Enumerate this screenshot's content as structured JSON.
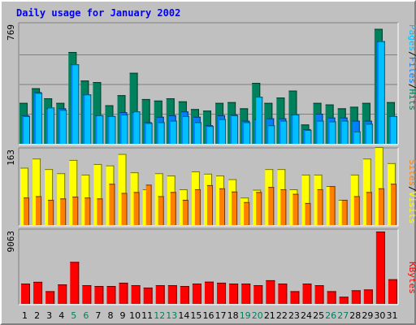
{
  "title": "Daily usage for January 2002",
  "colors": {
    "hits": "#00805c",
    "files": "#0080ff",
    "pages": "#00c0ff",
    "visits": "#ffff00",
    "sites": "#ff8000",
    "kbytes": "#ff0000",
    "title": "#0000ff",
    "weekend_day": "#00805c",
    "weekday": "#000000",
    "panel_bg": "#c0c0c0"
  },
  "chart_data": [
    {
      "type": "bar",
      "panel": "top",
      "axis_max_label": "769",
      "ylim": [
        0,
        769
      ],
      "categories": [
        "1",
        "2",
        "3",
        "4",
        "5",
        "6",
        "7",
        "8",
        "9",
        "10",
        "11",
        "12",
        "13",
        "14",
        "15",
        "16",
        "17",
        "18",
        "19",
        "20",
        "21",
        "22",
        "23",
        "24",
        "25",
        "26",
        "27",
        "28",
        "29",
        "30",
        "31"
      ],
      "legend": [
        {
          "text": "Pages",
          "color": "#00c0ff"
        },
        {
          "text": "/",
          "color": "#000000"
        },
        {
          "text": "Files",
          "color": "#0080ff"
        },
        {
          "text": "/",
          "color": "#000000"
        },
        {
          "text": "Hits",
          "color": "#00805c"
        }
      ],
      "series": [
        {
          "name": "Hits",
          "values": [
            265,
            360,
            295,
            265,
            595,
            410,
            400,
            250,
            315,
            460,
            290,
            280,
            295,
            275,
            225,
            215,
            265,
            270,
            230,
            395,
            265,
            300,
            345,
            125,
            265,
            255,
            230,
            240,
            265,
            745,
            270
          ]
        },
        {
          "name": "Files",
          "values": [
            185,
            335,
            230,
            230,
            515,
            320,
            185,
            180,
            205,
            205,
            140,
            175,
            185,
            210,
            175,
            120,
            185,
            190,
            150,
            160,
            165,
            165,
            190,
            95,
            195,
            170,
            170,
            150,
            150,
            665,
            180
          ]
        },
        {
          "name": "Pages",
          "values": [
            180,
            330,
            235,
            220,
            515,
            320,
            185,
            180,
            190,
            210,
            135,
            140,
            150,
            180,
            140,
            115,
            160,
            185,
            140,
            305,
            120,
            150,
            190,
            90,
            150,
            145,
            150,
            80,
            130,
            665,
            180
          ]
        }
      ]
    },
    {
      "type": "bar",
      "panel": "middle",
      "axis_max_label": "163",
      "ylim": [
        0,
        163
      ],
      "categories": [
        "1",
        "2",
        "3",
        "4",
        "5",
        "6",
        "7",
        "8",
        "9",
        "10",
        "11",
        "12",
        "13",
        "14",
        "15",
        "16",
        "17",
        "18",
        "19",
        "20",
        "21",
        "22",
        "23",
        "24",
        "25",
        "26",
        "27",
        "28",
        "29",
        "30",
        "31"
      ],
      "legend": [
        {
          "text": "Sites",
          "color": "#ff8000"
        },
        {
          "text": "/",
          "color": "#000000"
        },
        {
          "text": "Visits",
          "color": "#ffff00"
        }
      ],
      "series": [
        {
          "name": "Visits",
          "values": [
            125,
            145,
            122,
            113,
            142,
            110,
            133,
            130,
            155,
            115,
            78,
            113,
            108,
            78,
            117,
            112,
            108,
            100,
            60,
            77,
            122,
            122,
            78,
            110,
            110,
            85,
            55,
            110,
            145,
            170,
            135
          ]
        },
        {
          "name": "Sites",
          "values": [
            60,
            63,
            55,
            58,
            62,
            60,
            58,
            90,
            70,
            72,
            88,
            63,
            72,
            55,
            78,
            87,
            80,
            73,
            50,
            72,
            83,
            78,
            68,
            48,
            78,
            85,
            55,
            63,
            72,
            80,
            90
          ]
        }
      ]
    },
    {
      "type": "bar",
      "panel": "bottom",
      "axis_max_label": "9063",
      "ylim": [
        0,
        9063
      ],
      "categories": [
        "1",
        "2",
        "3",
        "4",
        "5",
        "6",
        "7",
        "8",
        "9",
        "10",
        "11",
        "12",
        "13",
        "14",
        "15",
        "16",
        "17",
        "18",
        "19",
        "20",
        "21",
        "22",
        "23",
        "24",
        "25",
        "26",
        "27",
        "28",
        "29",
        "30",
        "31"
      ],
      "legend": [
        {
          "text": "KBytes",
          "color": "#ff0000"
        }
      ],
      "series": [
        {
          "name": "KBytes",
          "values": [
            2540,
            2760,
            1590,
            2440,
            5260,
            2340,
            2240,
            2240,
            2650,
            2340,
            2040,
            2340,
            2340,
            2240,
            2540,
            2780,
            2650,
            2540,
            2540,
            2340,
            2960,
            2540,
            1590,
            2540,
            2340,
            1590,
            890,
            1700,
            1800,
            9063,
            3080
          ]
        }
      ]
    }
  ]
}
